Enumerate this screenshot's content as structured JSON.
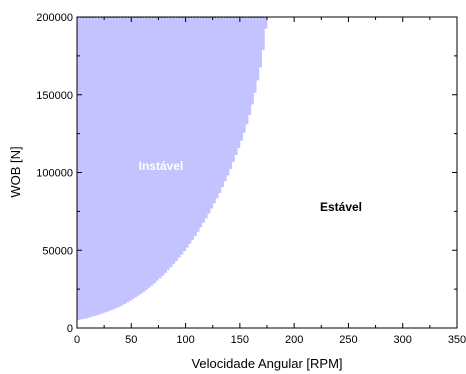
{
  "chart_data": {
    "type": "area",
    "xlabel": "Velocidade Angular [RPM]",
    "ylabel": "WOB [N]",
    "xlim": [
      0,
      350
    ],
    "ylim": [
      0,
      200000
    ],
    "x_ticks": [
      "0",
      "50",
      "100",
      "150",
      "200",
      "250",
      "300",
      "350"
    ],
    "y_ticks": [
      "0",
      "50000",
      "100000",
      "150000",
      "200000"
    ],
    "grid": false,
    "regions": [
      {
        "label": "Instável",
        "color": "#c3c3ff",
        "label_color": "#ffffff"
      },
      {
        "label": "Estável",
        "color": "#ffffff",
        "label_color": "#000000"
      }
    ],
    "boundary": {
      "x": [
        0,
        10,
        20,
        30,
        40,
        50,
        60,
        70,
        80,
        90,
        100,
        110,
        120,
        130,
        140,
        150,
        155,
        160,
        165,
        170,
        173,
        175
      ],
      "y": [
        5000,
        6500,
        8500,
        11000,
        14000,
        18000,
        22500,
        28000,
        34500,
        42000,
        50500,
        60500,
        72000,
        85000,
        100000,
        118000,
        128000,
        140000,
        155000,
        172000,
        188000,
        200000
      ]
    }
  }
}
